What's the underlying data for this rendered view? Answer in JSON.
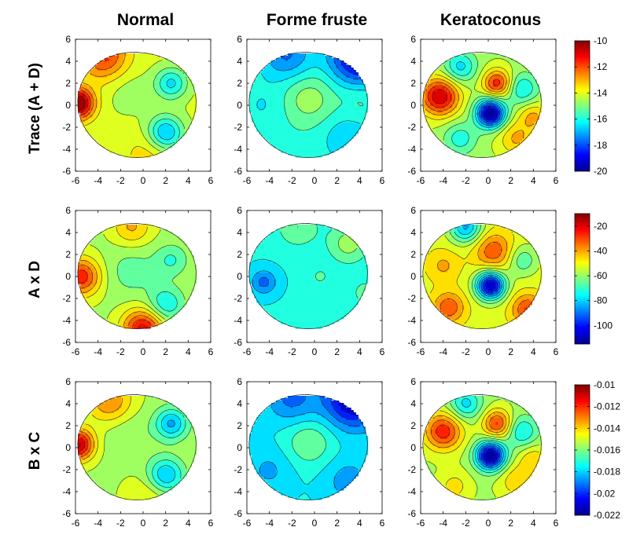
{
  "figure": {
    "columns": [
      "Normal",
      "Forme fruste",
      "Keratoconus"
    ],
    "rows": [
      "Trace (A + D)",
      "A x D",
      "B x C"
    ]
  },
  "colors": {
    "axis": "#000000",
    "contour": "#1a1a1a",
    "background": "#ffffff"
  },
  "chart_data": {
    "type": "heatmap",
    "subtype": "filled-contour grid",
    "x_range": [
      -6,
      6
    ],
    "y_range": [
      -6,
      6
    ],
    "x_ticks": [
      -6,
      -4,
      -2,
      0,
      2,
      4,
      6
    ],
    "y_ticks": [
      6,
      4,
      2,
      0,
      -2,
      -4,
      -6
    ],
    "panels": [
      {
        "row": 0,
        "col": 0,
        "name": "trace-normal",
        "base": 0.58,
        "features": [
          [
            -5.8,
            0.2,
            0.45,
            1.0
          ],
          [
            -3.5,
            4.5,
            0.25,
            1.5
          ],
          [
            -1.2,
            1.2,
            -0.05,
            1.5
          ],
          [
            2.5,
            2.0,
            -0.22,
            1.0
          ],
          [
            2.0,
            -2.5,
            -0.28,
            1.1
          ],
          [
            0.5,
            -4.5,
            0.08,
            1.5
          ]
        ]
      },
      {
        "row": 0,
        "col": 1,
        "name": "trace-forme-fruste",
        "base": 0.42,
        "features": [
          [
            4.0,
            4.5,
            -0.38,
            1.8
          ],
          [
            -2.5,
            4.6,
            -0.18,
            1.6
          ],
          [
            -0.5,
            0.6,
            0.12,
            1.6
          ],
          [
            -4.5,
            0.0,
            -0.05,
            1.5
          ],
          [
            3.0,
            -3.0,
            -0.1,
            1.6
          ],
          [
            4.0,
            0.5,
            0.05,
            1.3
          ]
        ]
      },
      {
        "row": 0,
        "col": 2,
        "name": "trace-keratoconus",
        "base": 0.55,
        "features": [
          [
            0.2,
            -0.7,
            -0.55,
            0.9
          ],
          [
            -4.3,
            0.8,
            0.38,
            1.2
          ],
          [
            0.8,
            2.0,
            0.3,
            0.9
          ],
          [
            3.0,
            1.5,
            -0.18,
            1.0
          ],
          [
            -2.5,
            3.5,
            -0.2,
            1.0
          ],
          [
            2.5,
            -3.0,
            0.15,
            1.1
          ],
          [
            -2.5,
            -3.0,
            -0.15,
            1.0
          ],
          [
            4.0,
            -1.0,
            0.15,
            0.9
          ]
        ]
      },
      {
        "row": 1,
        "col": 0,
        "name": "axd-normal",
        "base": 0.55,
        "features": [
          [
            -5.5,
            0.0,
            0.3,
            1.2
          ],
          [
            0.0,
            -4.8,
            0.35,
            1.3
          ],
          [
            -1.0,
            0.5,
            -0.08,
            1.6
          ],
          [
            2.5,
            1.5,
            -0.12,
            1.0
          ],
          [
            2.0,
            -2.5,
            -0.18,
            1.1
          ],
          [
            -1.0,
            4.5,
            0.15,
            1.2
          ]
        ]
      },
      {
        "row": 1,
        "col": 1,
        "name": "axd-forme-fruste",
        "base": 0.38,
        "features": [
          [
            3.0,
            3.0,
            0.15,
            1.3
          ],
          [
            -4.5,
            -0.5,
            -0.15,
            0.8
          ],
          [
            0.5,
            0.0,
            0.08,
            0.5
          ],
          [
            -1.5,
            4.5,
            0.12,
            1.3
          ],
          [
            4.5,
            -1.5,
            0.08,
            1.0
          ]
        ]
      },
      {
        "row": 1,
        "col": 2,
        "name": "axd-keratoconus",
        "base": 0.6,
        "features": [
          [
            0.2,
            -0.8,
            -0.55,
            0.9
          ],
          [
            -2.0,
            4.5,
            -0.3,
            1.0
          ],
          [
            0.5,
            2.3,
            0.2,
            1.2
          ],
          [
            3.5,
            -3.0,
            0.22,
            1.0
          ],
          [
            -3.5,
            -2.8,
            0.2,
            1.0
          ],
          [
            -4.0,
            1.0,
            0.1,
            1.0
          ],
          [
            3.0,
            1.5,
            -0.15,
            1.0
          ]
        ]
      },
      {
        "row": 2,
        "col": 0,
        "name": "bxc-normal",
        "base": 0.55,
        "features": [
          [
            -5.8,
            0.3,
            0.4,
            1.0
          ],
          [
            -3.0,
            4.3,
            0.2,
            1.4
          ],
          [
            -1.2,
            1.0,
            -0.05,
            1.5
          ],
          [
            2.5,
            2.2,
            -0.25,
            1.0
          ],
          [
            2.0,
            -2.5,
            -0.25,
            1.1
          ],
          [
            0.5,
            -4.5,
            0.08,
            1.5
          ]
        ]
      },
      {
        "row": 2,
        "col": 1,
        "name": "bxc-forme-fruste",
        "base": 0.38,
        "features": [
          [
            3.5,
            4.5,
            -0.35,
            1.8
          ],
          [
            -2.0,
            4.5,
            -0.15,
            1.6
          ],
          [
            -0.5,
            0.5,
            0.12,
            1.5
          ],
          [
            -4.0,
            -2.0,
            -0.08,
            1.5
          ],
          [
            3.0,
            -3.0,
            -0.1,
            1.5
          ]
        ]
      },
      {
        "row": 2,
        "col": 2,
        "name": "bxc-keratoconus",
        "base": 0.55,
        "features": [
          [
            0.2,
            -0.7,
            -0.55,
            0.9
          ],
          [
            -4.0,
            1.5,
            0.3,
            1.2
          ],
          [
            0.8,
            2.2,
            0.28,
            0.9
          ],
          [
            3.0,
            1.5,
            -0.18,
            1.0
          ],
          [
            -2.0,
            4.0,
            -0.2,
            1.0
          ],
          [
            2.5,
            -3.0,
            0.12,
            1.1
          ],
          [
            -3.0,
            -3.5,
            0.1,
            1.0
          ],
          [
            4.0,
            -1.0,
            0.12,
            0.9
          ]
        ]
      }
    ],
    "colorbars": [
      {
        "row": 0,
        "min": -20,
        "max": -10,
        "ticks": [
          "-10",
          "-12",
          "-14",
          "-16",
          "-18",
          "-20"
        ],
        "tick_values": [
          -10,
          -12,
          -14,
          -16,
          -18,
          -20
        ]
      },
      {
        "row": 1,
        "min": -115,
        "max": -10,
        "ticks": [
          "-20",
          "-40",
          "-60",
          "-80",
          "-100"
        ],
        "tick_values": [
          -20,
          -40,
          -60,
          -80,
          -100
        ]
      },
      {
        "row": 2,
        "min": -0.022,
        "max": -0.01,
        "ticks": [
          "-0.01",
          "-0.012",
          "-0.014",
          "-0.016",
          "-0.018",
          "-0.02",
          "-0.022"
        ],
        "tick_values": [
          -0.01,
          -0.012,
          -0.014,
          -0.016,
          -0.018,
          -0.02,
          -0.022
        ]
      }
    ]
  }
}
